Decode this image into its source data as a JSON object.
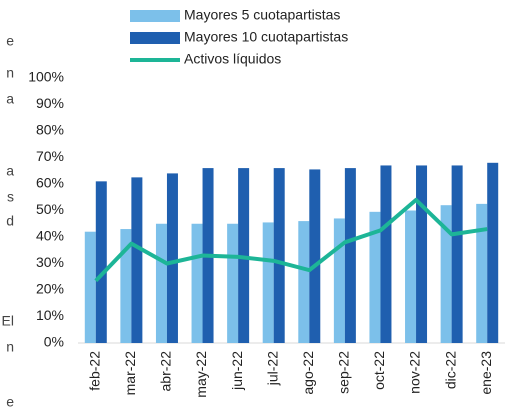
{
  "chart_data": {
    "type": "bar_line",
    "categories": [
      "feb-22",
      "mar-22",
      "abr-22",
      "may-22",
      "jun-22",
      "jul-22",
      "ago-22",
      "sep-22",
      "oct-22",
      "nov-22",
      "dic-22",
      "ene-23"
    ],
    "series": [
      {
        "name": "Mayores 5 cuotapartistas",
        "kind": "bar",
        "color": "#7cc0ea",
        "values": [
          42,
          43,
          45,
          45,
          45,
          45.5,
          46,
          47,
          49.5,
          50,
          52,
          52.5
        ]
      },
      {
        "name": "Mayores 10 cuotapartistas",
        "kind": "bar",
        "color": "#1f5faf",
        "values": [
          61,
          62.5,
          64,
          66,
          66,
          66,
          65.5,
          66,
          67,
          67,
          67,
          68
        ]
      },
      {
        "name": "Activos líquidos",
        "kind": "line",
        "color": "#1db597",
        "values": [
          23.5,
          37.5,
          30,
          33,
          32.5,
          31,
          27.5,
          38,
          42.5,
          54,
          41,
          43
        ]
      }
    ],
    "ylim": [
      0,
      100
    ],
    "yticks": [
      {
        "value": 0,
        "label": "0%"
      },
      {
        "value": 10,
        "label": "10%"
      },
      {
        "value": 20,
        "label": "20%"
      },
      {
        "value": 30,
        "label": "30%"
      },
      {
        "value": 40,
        "label": "40%"
      },
      {
        "value": 50,
        "label": "50%"
      },
      {
        "value": 60,
        "label": "60%"
      },
      {
        "value": 70,
        "label": "70%"
      },
      {
        "value": 80,
        "label": "80%"
      },
      {
        "value": 90,
        "label": "90%"
      },
      {
        "value": 100,
        "label": "100%"
      }
    ],
    "grid": false,
    "legend": "top",
    "annotations": [
      "e",
      "n",
      "a",
      "a",
      "s",
      "d",
      "El",
      "n",
      "e"
    ]
  }
}
